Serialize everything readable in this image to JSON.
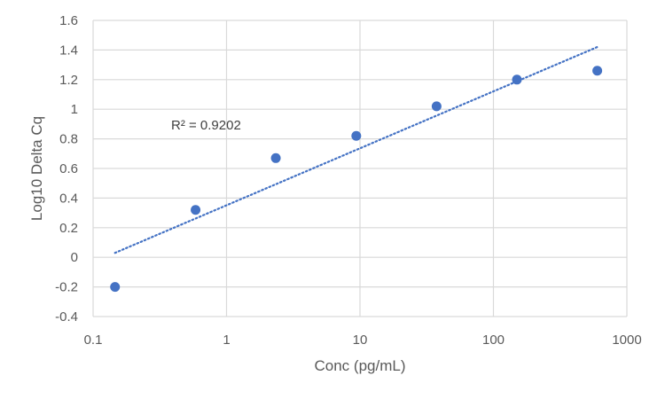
{
  "chart_data": {
    "type": "scatter",
    "xlabel": "Conc (pg/mL)",
    "ylabel": "Log10 Delta Cq",
    "x_scale": "log",
    "xlim": [
      0.1,
      1000
    ],
    "ylim": [
      -0.4,
      1.6
    ],
    "x_ticks": [
      "0.1",
      "1",
      "10",
      "100",
      "1000"
    ],
    "y_ticks": [
      "-0.4",
      "-0.2",
      "0",
      "0.2",
      "0.4",
      "0.6",
      "0.8",
      "1",
      "1.2",
      "1.4",
      "1.6"
    ],
    "grid": true,
    "points": [
      {
        "x": 0.146,
        "y": -0.2
      },
      {
        "x": 0.586,
        "y": 0.32
      },
      {
        "x": 2.34,
        "y": 0.67
      },
      {
        "x": 9.38,
        "y": 0.82
      },
      {
        "x": 37.5,
        "y": 1.02
      },
      {
        "x": 150,
        "y": 1.2
      },
      {
        "x": 600,
        "y": 1.26
      }
    ],
    "trendline": {
      "type": "log",
      "style": "dotted",
      "from": {
        "x": 0.146,
        "y": 0.03
      },
      "to": {
        "x": 600,
        "y": 1.42
      }
    },
    "annotation": "R² = 0.9202",
    "colors": {
      "point": "#4472c4",
      "trendline": "#4472c4",
      "grid": "#d9d9d9",
      "text": "#595959"
    }
  }
}
